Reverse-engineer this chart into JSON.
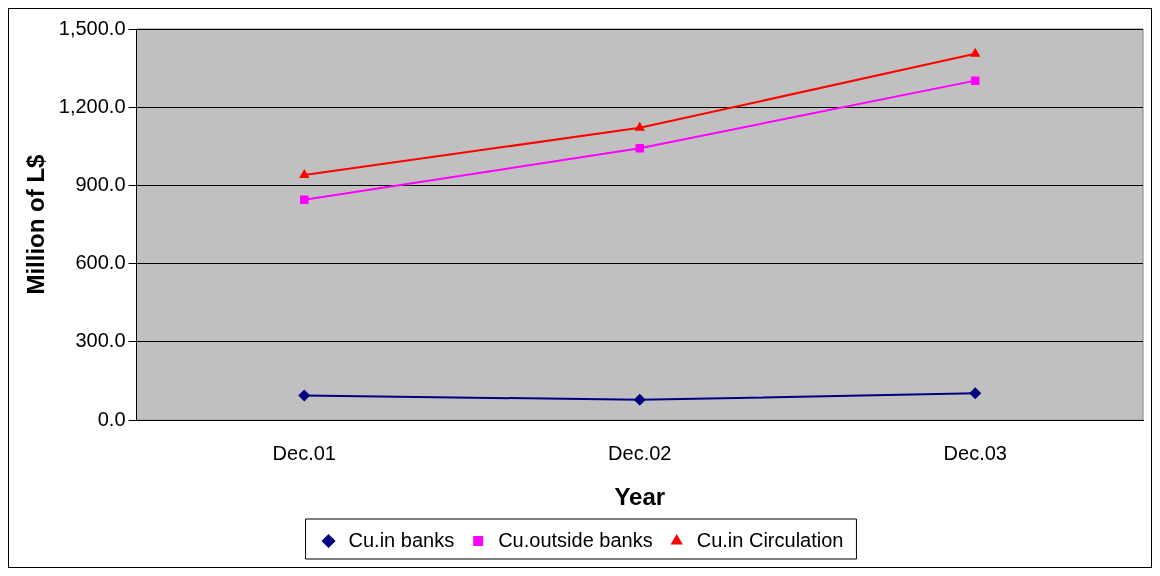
{
  "chart_data": {
    "type": "line",
    "xlabel": "Year",
    "ylabel": "Million of L$",
    "categories": [
      "Dec.01",
      "Dec.02",
      "Dec.03"
    ],
    "series": [
      {
        "name": "Cu.in banks",
        "color": "#000080",
        "marker": "diamond",
        "values": [
          95,
          78,
          103
        ]
      },
      {
        "name": "Cu.outside banks",
        "color": "#ff00ff",
        "marker": "square",
        "values": [
          845,
          1043,
          1302
        ]
      },
      {
        "name": "Cu.in Circulation",
        "color": "#ff0000",
        "marker": "triangle",
        "values": [
          940,
          1121,
          1405
        ]
      }
    ],
    "ylim": [
      0,
      1500
    ],
    "yticks": [
      {
        "value": 0,
        "label": "0.0"
      },
      {
        "value": 300,
        "label": "300.0"
      },
      {
        "value": 600,
        "label": "600.0"
      },
      {
        "value": 900,
        "label": "900.0"
      },
      {
        "value": 1200,
        "label": "1,200.0"
      },
      {
        "value": 1500,
        "label": "1,500.0"
      }
    ],
    "grid": "y",
    "legend": "bottom"
  }
}
